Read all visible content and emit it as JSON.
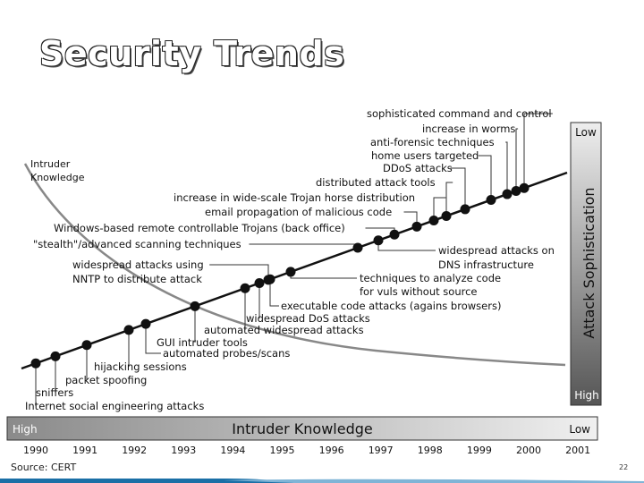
{
  "slide": {
    "title": "Security Trends",
    "source": "Source: CERT",
    "page_number": "22"
  },
  "diagram": {
    "curve_label": [
      "Intruder",
      "Knowledge"
    ],
    "side_bar": {
      "top": "Low",
      "label": "Attack Sophistication",
      "bottom": "High"
    },
    "bottom_bar": {
      "left": "High",
      "label": "Intruder Knowledge",
      "right": "Low"
    },
    "years": [
      "1990",
      "1991",
      "1992",
      "1993",
      "1994",
      "1995",
      "1996",
      "1997",
      "1998",
      "1999",
      "2000",
      "2001"
    ],
    "events": [
      {
        "label": "Internet social engineering attacks"
      },
      {
        "label": "sniffers"
      },
      {
        "label": "packet spoofing"
      },
      {
        "label": "hijacking sessions"
      },
      {
        "label": "automated probes/scans"
      },
      {
        "label": "GUI intruder tools"
      },
      {
        "label": "automated widespread attacks"
      },
      {
        "label": "widespread DoS attacks"
      },
      {
        "label": "executable code attacks (agains browsers)"
      },
      {
        "label": [
          "widespread attacks using",
          "NNTP to distribute attack"
        ]
      },
      {
        "label": [
          "techniques to analyze code",
          "for vuls without source"
        ]
      },
      {
        "label": "\"stealth\"/advanced scanning techniques"
      },
      {
        "label": [
          "widespread attacks on",
          "DNS infrastructure"
        ]
      },
      {
        "label": "Windows-based remote controllable Trojans (back office)"
      },
      {
        "label": "email propagation of malicious code"
      },
      {
        "label": "increase in wide-scale Trojan horse distribution"
      },
      {
        "label": "distributed attack tools"
      },
      {
        "label": "DDoS attacks"
      },
      {
        "label": "home users targeted"
      },
      {
        "label": "anti-forensic techniques"
      },
      {
        "label": "increase in worms"
      },
      {
        "label": "sophisticated command and control"
      }
    ]
  }
}
